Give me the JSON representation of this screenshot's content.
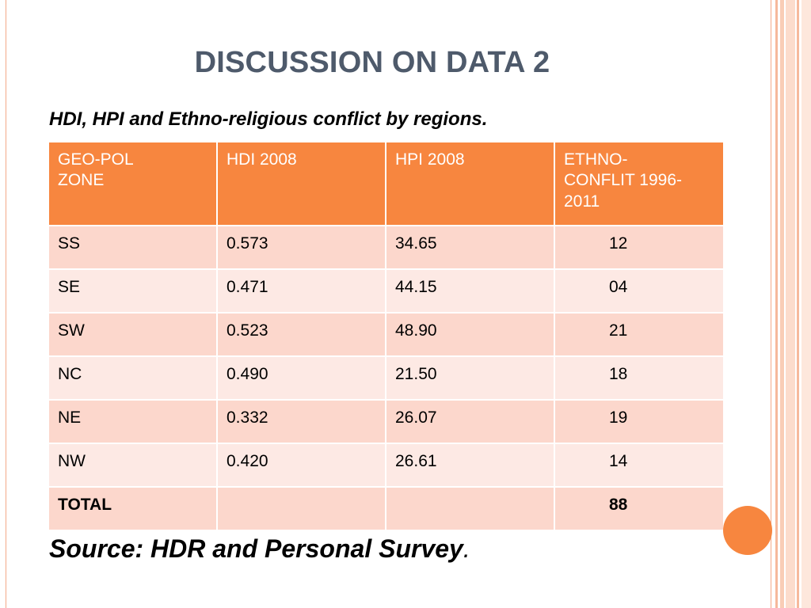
{
  "slide": {
    "title": "DISCUSSION ON DATA 2",
    "subtitle": "HDI, HPI and Ethno-religious conflict by regions.",
    "source": "Source: HDR and Personal Survey",
    "source_punct": ".",
    "colors": {
      "header_bg": "#f7863f",
      "row_odd": "#fcd7cc",
      "row_even": "#fde9e4",
      "title": "#4e5a6b"
    }
  },
  "table": {
    "headers": {
      "zone": "GEO-POL ZONE",
      "hdi": "HDI 2008",
      "hpi": "HPI 2008",
      "conflict": "ETHNO-CONFLIT 1996-2011"
    },
    "rows": [
      {
        "zone": "SS",
        "hdi": "0.573",
        "hpi": "34.65",
        "conflict": "12"
      },
      {
        "zone": "SE",
        "hdi": "0.471",
        "hpi": "44.15",
        "conflict": "04"
      },
      {
        "zone": "SW",
        "hdi": "0.523",
        "hpi": "48.90",
        "conflict": "21"
      },
      {
        "zone": "NC",
        "hdi": "0.490",
        "hpi": "21.50",
        "conflict": "18"
      },
      {
        "zone": "NE",
        "hdi": "0.332",
        "hpi": "26.07",
        "conflict": "19"
      },
      {
        "zone": "NW",
        "hdi": "0.420",
        "hpi": "26.61",
        "conflict": "14"
      }
    ],
    "total": {
      "label": "TOTAL",
      "conflict": "88"
    }
  }
}
